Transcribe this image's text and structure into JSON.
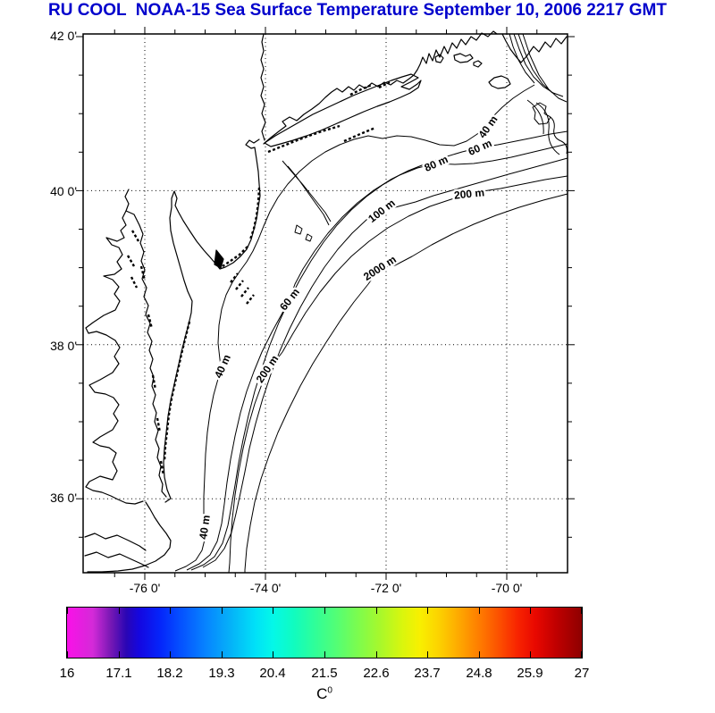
{
  "title": {
    "text": "RU COOL  NOAA-15 Sea Surface Temperature September 10, 2006 2217 GMT",
    "color": "#0000cc"
  },
  "map": {
    "y_axis_labels": [
      "42 0'",
      "40 0'",
      "38 0'",
      "36 0'"
    ],
    "x_axis_labels": [
      "-76 0'",
      "-74 0'",
      "-72 0'",
      "-70 0'"
    ],
    "contour_labels": [
      {
        "text": "40 m"
      },
      {
        "text": "60 m"
      },
      {
        "text": "80 m"
      },
      {
        "text": "200 m"
      },
      {
        "text": "100 m"
      },
      {
        "text": "2000 m"
      },
      {
        "text": "60 m"
      },
      {
        "text": "200 m"
      },
      {
        "text": "40 m"
      },
      {
        "text": "40 m"
      }
    ]
  },
  "colorbar": {
    "range": [
      16,
      27
    ],
    "tick_labels": [
      "16",
      "17.1",
      "18.2",
      "19.3",
      "20.4",
      "21.5",
      "22.6",
      "23.7",
      "24.8",
      "25.9",
      "27"
    ],
    "unit": "C",
    "unit_sup": "0",
    "gradient": [
      [
        0.0,
        "#fa10e8"
      ],
      [
        0.05,
        "#d42ad8"
      ],
      [
        0.085,
        "#7718b4"
      ],
      [
        0.115,
        "#2a06b4"
      ],
      [
        0.14,
        "#1407e0"
      ],
      [
        0.18,
        "#0524fa"
      ],
      [
        0.22,
        "#0550ff"
      ],
      [
        0.27,
        "#0784ff"
      ],
      [
        0.32,
        "#05b4f8"
      ],
      [
        0.365,
        "#00e0f8"
      ],
      [
        0.4,
        "#04f8e8"
      ],
      [
        0.44,
        "#10fcc0"
      ],
      [
        0.48,
        "#2efe9a"
      ],
      [
        0.52,
        "#50fe78"
      ],
      [
        0.565,
        "#7cfc4e"
      ],
      [
        0.61,
        "#aaf82a"
      ],
      [
        0.65,
        "#d8f60e"
      ],
      [
        0.685,
        "#f8f000"
      ],
      [
        0.72,
        "#fcd400"
      ],
      [
        0.76,
        "#feaa00"
      ],
      [
        0.8,
        "#fe7d00"
      ],
      [
        0.84,
        "#fc4f00"
      ],
      [
        0.875,
        "#f82400"
      ],
      [
        0.91,
        "#e80800"
      ],
      [
        0.95,
        "#c00000"
      ],
      [
        1.0,
        "#8e0000"
      ]
    ]
  }
}
